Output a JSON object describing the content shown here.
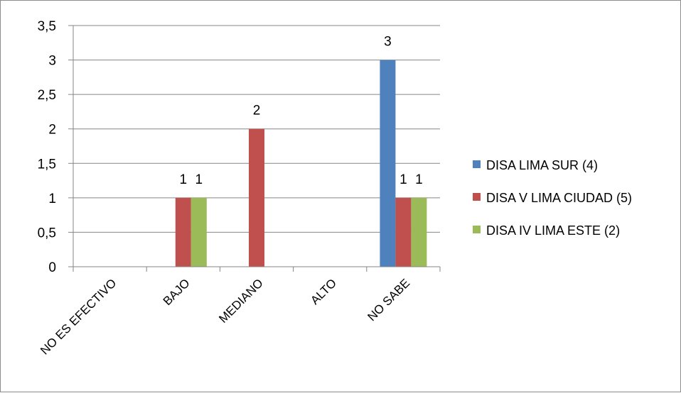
{
  "chart_data": {
    "type": "bar",
    "title": "",
    "xlabel": "",
    "ylabel": "",
    "categories": [
      "NO ES EFECTIVO",
      "BAJO",
      "MEDIANO",
      "ALTO",
      "NO SABE"
    ],
    "series": [
      {
        "name": "DISA LIMA SUR (4)",
        "color": "#4F81BD",
        "values": [
          0,
          0,
          0,
          0,
          3
        ]
      },
      {
        "name": "DISA V LIMA CIUDAD (5)",
        "color": "#C0504D",
        "values": [
          0,
          1,
          2,
          0,
          1
        ]
      },
      {
        "name": "DISA IV LIMA ESTE (2)",
        "color": "#9BBB59",
        "values": [
          0,
          1,
          0,
          0,
          1
        ]
      }
    ],
    "ylim": [
      0,
      3.5
    ],
    "yticks": [
      "0",
      "0,5",
      "1",
      "1,5",
      "2",
      "2,5",
      "3",
      "3,5"
    ],
    "data_labels": [
      {
        "category": "BAJO",
        "series": "DISA V LIMA CIUDAD (5)",
        "text": "1"
      },
      {
        "category": "BAJO",
        "series": "DISA IV LIMA ESTE (2)",
        "text": "1"
      },
      {
        "category": "MEDIANO",
        "series": "DISA V LIMA CIUDAD (5)",
        "text": "2"
      },
      {
        "category": "NO SABE",
        "series": "DISA LIMA SUR (4)",
        "text": "3"
      },
      {
        "category": "NO SABE",
        "series": "DISA V LIMA CIUDAD (5)",
        "text": "1"
      },
      {
        "category": "NO SABE",
        "series": "DISA IV LIMA ESTE (2)",
        "text": "1"
      }
    ],
    "grid": true,
    "legend": "right",
    "grid_color": "#868686",
    "axis_color": "#868686"
  }
}
